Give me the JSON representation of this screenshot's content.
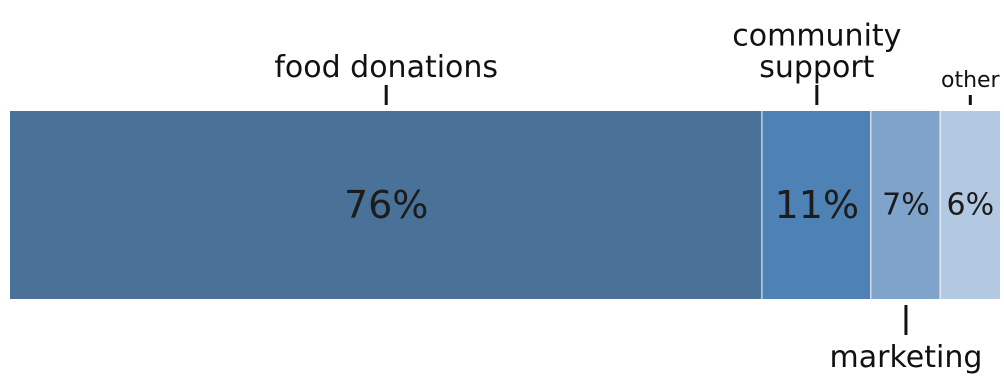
{
  "chart_data": {
    "type": "bar",
    "orientation": "horizontal-stacked-100",
    "categories": [
      "food donations",
      "community support",
      "marketing",
      "other"
    ],
    "values": [
      76,
      11,
      7,
      6
    ],
    "value_labels": [
      "76%",
      "11%",
      "7%",
      "6%"
    ],
    "label_position": [
      "above",
      "above",
      "below",
      "above"
    ],
    "colors": [
      "#4a7198",
      "#4e82b4",
      "#7fa3cb",
      "#b3c9e2"
    ],
    "unit": "%",
    "total": 100
  }
}
